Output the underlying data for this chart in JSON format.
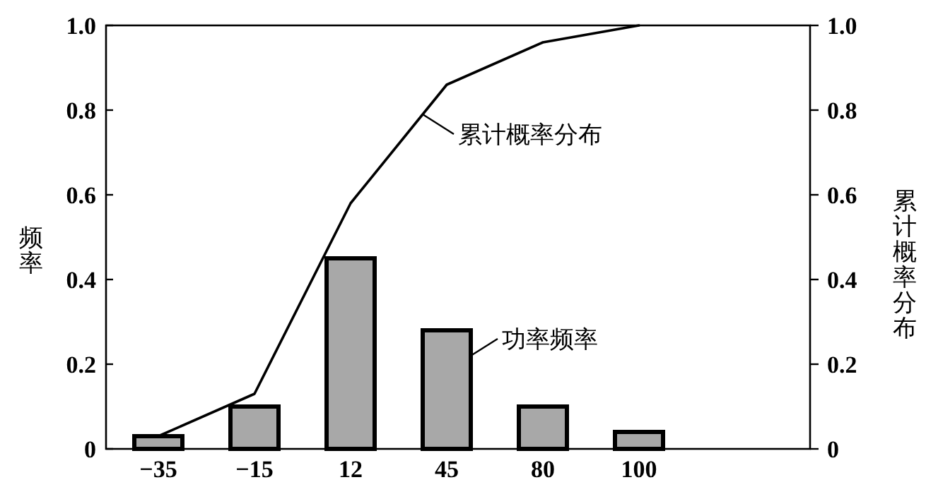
{
  "chart_data": {
    "type": "bar",
    "ylabel": "频率",
    "y2label": "累计概率分布",
    "categories": [
      "−35",
      "−15",
      "12",
      "45",
      "80",
      "100"
    ],
    "series": [
      {
        "name": "功率频率",
        "color": "#a8a8a8",
        "values": [
          0.03,
          0.1,
          0.45,
          0.28,
          0.1,
          0.04
        ]
      },
      {
        "name": "累计概率分布",
        "type": "line",
        "color": "#000000",
        "values": [
          0.03,
          0.13,
          0.58,
          0.86,
          0.96,
          1.0
        ]
      }
    ],
    "ylim": [
      0,
      1
    ],
    "yticks": [
      0,
      0.2,
      0.4,
      0.6,
      0.8,
      {
        "value": 1,
        "label": "1.0"
      }
    ],
    "y2lim": [
      0,
      1
    ],
    "y2ticks": [
      0,
      0.2,
      0.4,
      0.6,
      0.8,
      {
        "value": 1,
        "label": "1.0"
      }
    ],
    "grid": false,
    "legend": "center",
    "marker": "none",
    "line_style": "solid"
  }
}
